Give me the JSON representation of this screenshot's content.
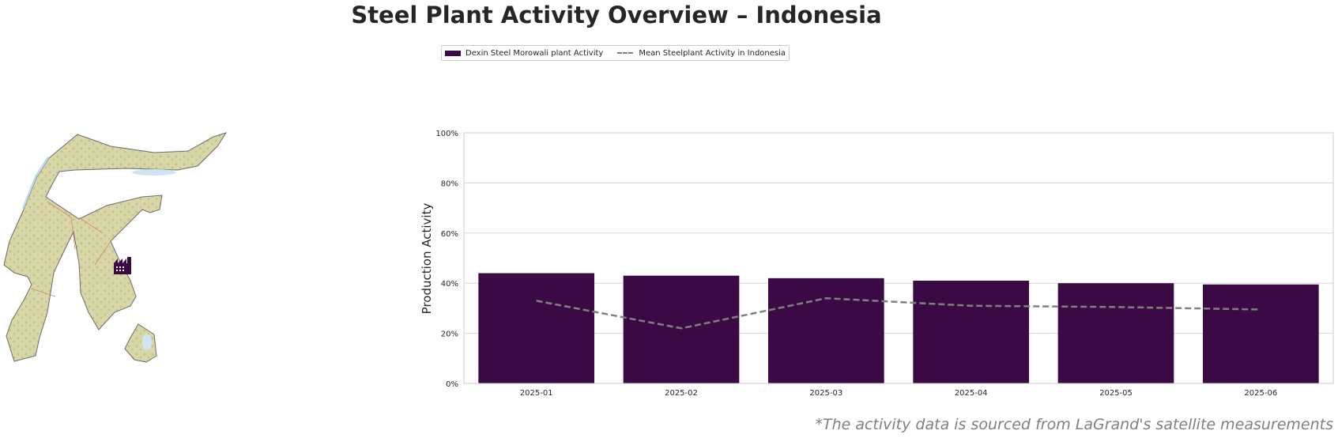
{
  "title": "Steel Plant Activity Overview – Indonesia",
  "source_note": "*The activity data is sourced from LaGrand's satellite measurements",
  "legend": {
    "placement": "top-center",
    "entries": [
      {
        "label": "Dexin Steel Morowali plant Activity",
        "type": "bar",
        "color": "#3b0a45"
      },
      {
        "label": "Mean Steelplant Activity in Indonesia",
        "type": "dashed-line",
        "color": "#808080"
      }
    ]
  },
  "map": {
    "region": "Sulawesi",
    "marker_icon": "factory-icon",
    "marker_color": "#3b0a45"
  },
  "chart_data": {
    "type": "bar",
    "categories": [
      "2025-01",
      "2025-02",
      "2025-03",
      "2025-04",
      "2025-05",
      "2025-06"
    ],
    "series": [
      {
        "name": "Dexin Steel Morowali plant Activity",
        "type": "bar",
        "color": "#3b0a45",
        "values": [
          44,
          43,
          42,
          41,
          40,
          39.5
        ]
      },
      {
        "name": "Mean Steelplant Activity in Indonesia",
        "type": "line",
        "style": "dashed",
        "color": "#808080",
        "values": [
          33,
          22,
          34,
          31,
          30.5,
          29.5
        ]
      }
    ],
    "ylabel": "Production Activity",
    "xlabel": "",
    "ylim": [
      0,
      100
    ],
    "yticks": [
      0,
      20,
      40,
      60,
      80,
      100
    ],
    "ytick_labels": [
      "0%",
      "20%",
      "40%",
      "60%",
      "80%",
      "100%"
    ],
    "grid": "horizontal"
  }
}
